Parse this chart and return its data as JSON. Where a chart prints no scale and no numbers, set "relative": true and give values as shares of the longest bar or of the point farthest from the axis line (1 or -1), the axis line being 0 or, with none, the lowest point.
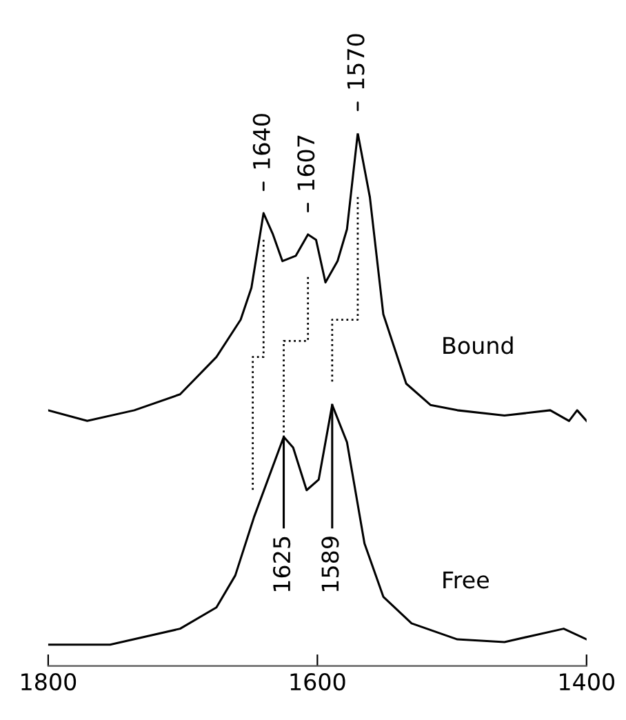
{
  "chart_data": {
    "type": "line",
    "relative": true,
    "xlim": [
      1800,
      1400
    ],
    "xticks": [
      1800,
      1600,
      1400
    ],
    "tick_labels": "x",
    "grid": false,
    "legend": false,
    "series": [
      {
        "name": "Bound",
        "color": "#000000",
        "x": [
          1800,
          1771,
          1736,
          1702,
          1675,
          1657,
          1649,
          1640,
          1633,
          1626,
          1616,
          1607,
          1601,
          1594,
          1585,
          1578,
          1570,
          1561,
          1551,
          1534,
          1516,
          1496,
          1461,
          1427,
          1413,
          1407,
          1400
        ],
        "values": [
          0.48,
          0.46,
          0.48,
          0.51,
          0.58,
          0.65,
          0.71,
          0.85,
          0.81,
          0.76,
          0.77,
          0.81,
          0.8,
          0.72,
          0.76,
          0.82,
          1.0,
          0.88,
          0.66,
          0.53,
          0.49,
          0.48,
          0.47,
          0.48,
          0.46,
          0.48,
          0.46
        ]
      },
      {
        "name": "Free",
        "color": "#000000",
        "x": [
          1800,
          1754,
          1702,
          1675,
          1661,
          1647,
          1625,
          1618,
          1608,
          1599,
          1589,
          1578,
          1565,
          1551,
          1530,
          1496,
          1461,
          1417,
          1400
        ],
        "values": [
          0.04,
          0.04,
          0.07,
          0.11,
          0.17,
          0.28,
          0.43,
          0.41,
          0.33,
          0.35,
          0.49,
          0.42,
          0.23,
          0.13,
          0.08,
          0.05,
          0.045,
          0.07,
          0.05
        ]
      },
      {
        "color": "#000000",
        "line_style": "dotted",
        "x": [
          1640,
          1640,
          1648,
          1648
        ],
        "values": [
          0.8,
          0.58,
          0.58,
          0.33
        ]
      },
      {
        "color": "#000000",
        "line_style": "dotted",
        "x": [
          1607,
          1607,
          1625,
          1625
        ],
        "values": [
          0.73,
          0.61,
          0.61,
          0.43
        ]
      },
      {
        "color": "#000000",
        "line_style": "dotted",
        "x": [
          1570,
          1570,
          1589,
          1589
        ],
        "values": [
          0.88,
          0.65,
          0.65,
          0.53
        ]
      },
      {
        "color": "#000000",
        "line_style": "solid",
        "x": [
          1625,
          1625
        ],
        "values": [
          0.43,
          0.26
        ]
      },
      {
        "color": "#000000",
        "line_style": "solid",
        "x": [
          1589,
          1589
        ],
        "values": [
          0.49,
          0.26
        ]
      }
    ],
    "annotations": [
      {
        "text": "1640",
        "x": 1640,
        "y": 0.85
      },
      {
        "text": "1607",
        "x": 1607,
        "y": 0.81
      },
      {
        "text": "1570",
        "x": 1570,
        "y": 1.0
      },
      {
        "text": "1625",
        "x": 1625,
        "y": 0.26
      },
      {
        "text": "1589",
        "x": 1589,
        "y": 0.26
      }
    ]
  }
}
